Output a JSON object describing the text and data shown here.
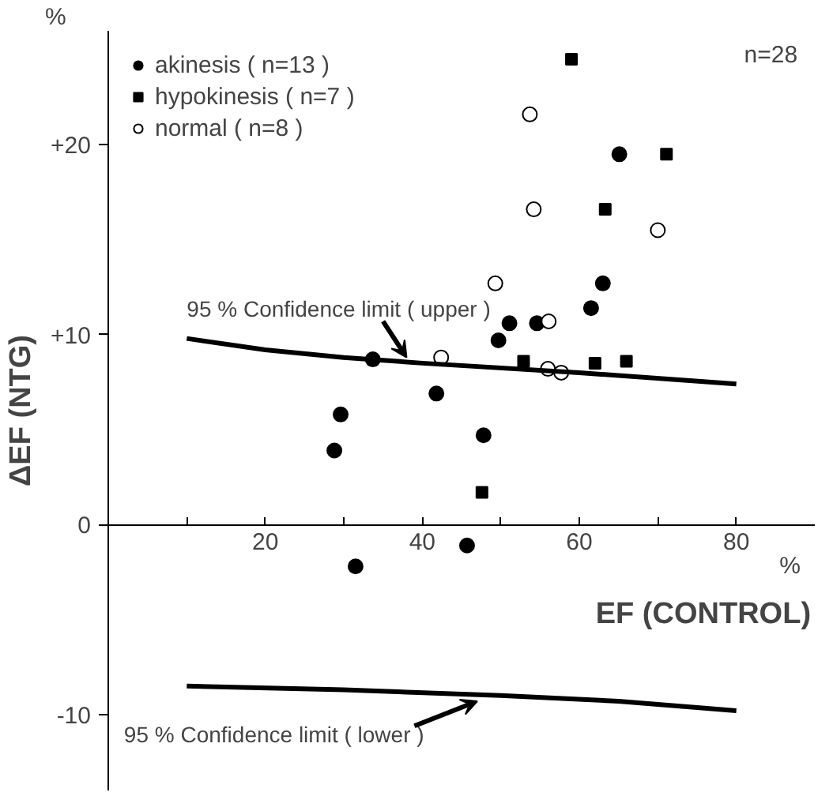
{
  "chart_data": {
    "type": "scatter",
    "xlabel": "EF (CONTROL)",
    "ylabel": "ΔEF (NTG)",
    "xlim": [
      0,
      90
    ],
    "ylim": [
      -14,
      26
    ],
    "xticks": [
      {
        "value": 10,
        "label": null
      },
      20,
      {
        "value": 30,
        "label": null
      },
      40,
      {
        "value": 50,
        "label": null
      },
      60,
      {
        "value": 70,
        "label": null
      },
      80
    ],
    "yticks": [
      {
        "value": -10,
        "label": "-10"
      },
      0,
      {
        "value": 10,
        "label": "+10"
      },
      {
        "value": 20,
        "label": "+20"
      }
    ],
    "grid": false,
    "legend": "top left",
    "series": [
      {
        "name": "akinesis ( n=13 )",
        "marker": "circle",
        "color": "#000000",
        "x": [
          33.7,
          51.1,
          54.6,
          49.7,
          41.8,
          61.5,
          65.1,
          63,
          29.6,
          28.8,
          47.8,
          45.7,
          31.5
        ],
        "values": [
          8.7,
          10.6,
          10.6,
          9.7,
          6.9,
          11.4,
          19.5,
          12.7,
          5.8,
          3.9,
          4.7,
          -1.1,
          -2.2
        ]
      },
      {
        "name": "hypokinesis ( n=7 )",
        "marker": "square",
        "color": "#000000",
        "x": [
          59,
          71.1,
          63.3,
          52.9,
          62,
          66,
          47.6
        ],
        "values": [
          24.5,
          19.5,
          16.6,
          8.6,
          8.5,
          8.6,
          1.7
        ]
      },
      {
        "name": "normal ( n=8 )",
        "marker": "circle",
        "color": "#ffffff",
        "x": [
          53.7,
          54.2,
          70,
          49.3,
          56.1,
          56,
          57.7,
          42.4
        ],
        "values": [
          21.6,
          16.6,
          15.5,
          12.7,
          10.7,
          8.2,
          8.0,
          8.8
        ]
      },
      {
        "type": "line",
        "color": "#000000",
        "x": [
          10,
          20,
          30,
          40,
          60,
          80
        ],
        "values": [
          9.8,
          9.2,
          8.8,
          8.5,
          8.0,
          7.4
        ]
      },
      {
        "type": "line",
        "color": "#000000",
        "x": [
          10,
          30,
          50,
          65,
          80
        ],
        "values": [
          -8.5,
          -8.7,
          -9.0,
          -9.3,
          -9.8
        ]
      }
    ],
    "annotations": [
      "%",
      "%",
      "n=28",
      {
        "text": "95 % Confidence limit ( upper )",
        "x": 38,
        "y": 8.5
      },
      {
        "text": "95 % Confidence limit ( lower )",
        "x": 47,
        "y": -9.1
      }
    ]
  }
}
